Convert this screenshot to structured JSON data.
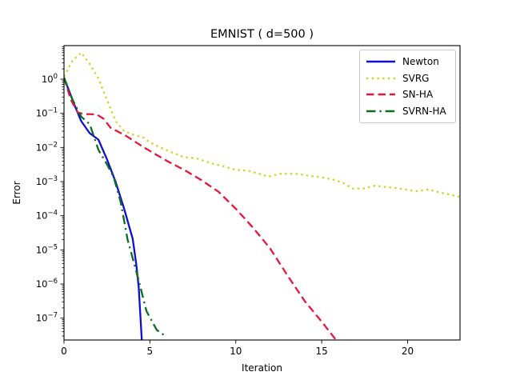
{
  "title": "EMNIST ( d=500 )",
  "chart_data": {
    "type": "line",
    "title": "EMNIST ( d=500 )",
    "xlabel": "Iteration",
    "ylabel": "Error",
    "x_range": [
      0,
      23.05
    ],
    "y_scale": "log",
    "y_range_log10": [
      -7.64,
      0.984
    ],
    "x_ticks": [
      0,
      5,
      10,
      15,
      20
    ],
    "y_tick_exponents": [
      0,
      -1,
      -2,
      -3,
      -4,
      -5,
      -6,
      -7
    ],
    "grid": false,
    "legend_position": "upper right",
    "series": [
      {
        "name": "Newton",
        "color": "#0f0fcd",
        "style": "solid",
        "points": [
          [
            0,
            1.12
          ],
          [
            0.3,
            0.45
          ],
          [
            0.6,
            0.18
          ],
          [
            1,
            0.059
          ],
          [
            1.5,
            0.026
          ],
          [
            2,
            0.017
          ],
          [
            2.5,
            0.0045
          ],
          [
            3,
            0.001
          ],
          [
            3.5,
            0.00016
          ],
          [
            4,
            2.1e-05
          ],
          [
            4.2,
            4e-06
          ],
          [
            4.35,
            8e-07
          ],
          [
            4.55,
            1.5e-08
          ]
        ]
      },
      {
        "name": "SVRG",
        "color": "#c9d82e",
        "style": "dotted",
        "points": [
          [
            0,
            1.2
          ],
          [
            0.5,
            3.5
          ],
          [
            1,
            6.0
          ],
          [
            1.5,
            2.8
          ],
          [
            2,
            1.05
          ],
          [
            2.5,
            0.25
          ],
          [
            3,
            0.06
          ],
          [
            3.5,
            0.03
          ],
          [
            4,
            0.024
          ],
          [
            4.65,
            0.019
          ],
          [
            5,
            0.014
          ],
          [
            5.6,
            0.01
          ],
          [
            6.3,
            0.0071
          ],
          [
            7,
            0.0052
          ],
          [
            7.7,
            0.0048
          ],
          [
            8.6,
            0.0034
          ],
          [
            9.3,
            0.0028
          ],
          [
            10,
            0.0022
          ],
          [
            10.7,
            0.0021
          ],
          [
            11.2,
            0.0018
          ],
          [
            11.9,
            0.0014
          ],
          [
            12.6,
            0.0017
          ],
          [
            13.5,
            0.0017
          ],
          [
            14.2,
            0.0015
          ],
          [
            15.1,
            0.0013
          ],
          [
            15.8,
            0.0011
          ],
          [
            16.3,
            0.00089
          ],
          [
            16.8,
            0.00063
          ],
          [
            17.4,
            0.00063
          ],
          [
            18.1,
            0.00076
          ],
          [
            18.8,
            0.00069
          ],
          [
            19.5,
            0.00063
          ],
          [
            20.5,
            0.00052
          ],
          [
            21.2,
            0.00059
          ],
          [
            21.9,
            0.00048
          ],
          [
            22.6,
            0.0004
          ],
          [
            23,
            0.00036
          ]
        ]
      },
      {
        "name": "SN-HA",
        "color": "#e6173c",
        "style": "dashed",
        "points": [
          [
            0,
            1.1
          ],
          [
            0.4,
            0.25
          ],
          [
            0.8,
            0.105
          ],
          [
            1.2,
            0.095
          ],
          [
            1.9,
            0.093
          ],
          [
            2.3,
            0.07
          ],
          [
            2.7,
            0.038
          ],
          [
            3.6,
            0.022
          ],
          [
            4.65,
            0.01
          ],
          [
            6,
            0.004
          ],
          [
            7,
            0.0022
          ],
          [
            8,
            0.0011
          ],
          [
            9,
            0.0005
          ],
          [
            10,
            0.00016
          ],
          [
            11,
            4.5e-05
          ],
          [
            12,
            1.1e-05
          ],
          [
            13,
            1.8e-06
          ],
          [
            14,
            3.2e-07
          ],
          [
            15,
            7.9e-08
          ],
          [
            16,
            1.8e-08
          ]
        ]
      },
      {
        "name": "SVRN-HA",
        "color": "#0b6e1e",
        "style": "dashdot",
        "points": [
          [
            0,
            1.12
          ],
          [
            0.5,
            0.25
          ],
          [
            1,
            0.08
          ],
          [
            1.5,
            0.048
          ],
          [
            2,
            0.0085
          ],
          [
            2.5,
            0.0032
          ],
          [
            2.9,
            0.0013
          ],
          [
            3.3,
            0.00025
          ],
          [
            3.7,
            2e-05
          ],
          [
            4.3,
            1.6e-06
          ],
          [
            4.8,
            1.6e-07
          ],
          [
            5.4,
            4.5e-08
          ],
          [
            5.9,
            3e-08
          ]
        ]
      }
    ]
  }
}
